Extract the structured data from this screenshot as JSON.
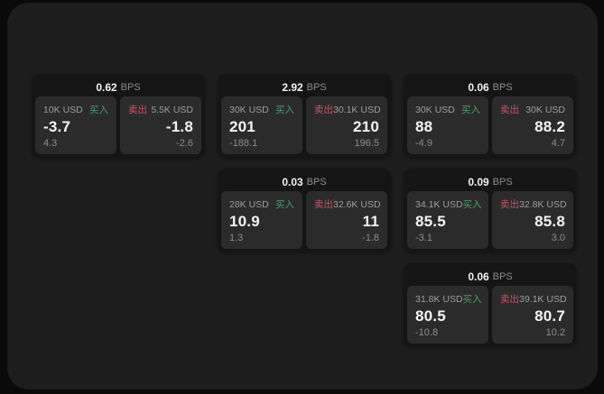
{
  "colors": {
    "buy": "#46a06e",
    "sell": "#c9536a"
  },
  "labels": {
    "bps": "BPS",
    "buy": "买入",
    "sell": "卖出"
  },
  "cards": [
    {
      "row": 1,
      "col": 1,
      "bps": "0.62",
      "buy": {
        "amount": "10K USD",
        "value": "-3.7",
        "delta": "4.3"
      },
      "sell": {
        "amount": "5.5K USD",
        "value": "-1.8",
        "delta": "-2.6"
      }
    },
    {
      "row": 1,
      "col": 2,
      "bps": "2.92",
      "buy": {
        "amount": "30K USD",
        "value": "201",
        "delta": "-188.1"
      },
      "sell": {
        "amount": "30.1K USD",
        "value": "210",
        "delta": "196.5"
      }
    },
    {
      "row": 1,
      "col": 3,
      "bps": "0.06",
      "buy": {
        "amount": "30K USD",
        "value": "88",
        "delta": "-4.9"
      },
      "sell": {
        "amount": "30K USD",
        "value": "88.2",
        "delta": "4.7"
      }
    },
    {
      "row": 2,
      "col": 2,
      "bps": "0.03",
      "buy": {
        "amount": "28K USD",
        "value": "10.9",
        "delta": "1.3"
      },
      "sell": {
        "amount": "32.6K USD",
        "value": "11",
        "delta": "-1.8"
      }
    },
    {
      "row": 2,
      "col": 3,
      "bps": "0.09",
      "buy": {
        "amount": "34.1K USD",
        "value": "85.5",
        "delta": "-3.1"
      },
      "sell": {
        "amount": "32.8K USD",
        "value": "85.8",
        "delta": "3.0"
      }
    },
    {
      "row": 3,
      "col": 3,
      "bps": "0.06",
      "buy": {
        "amount": "31.8K USD",
        "value": "80.5",
        "delta": "-10.8"
      },
      "sell": {
        "amount": "39.1K USD",
        "value": "80.7",
        "delta": "10.2"
      }
    }
  ]
}
